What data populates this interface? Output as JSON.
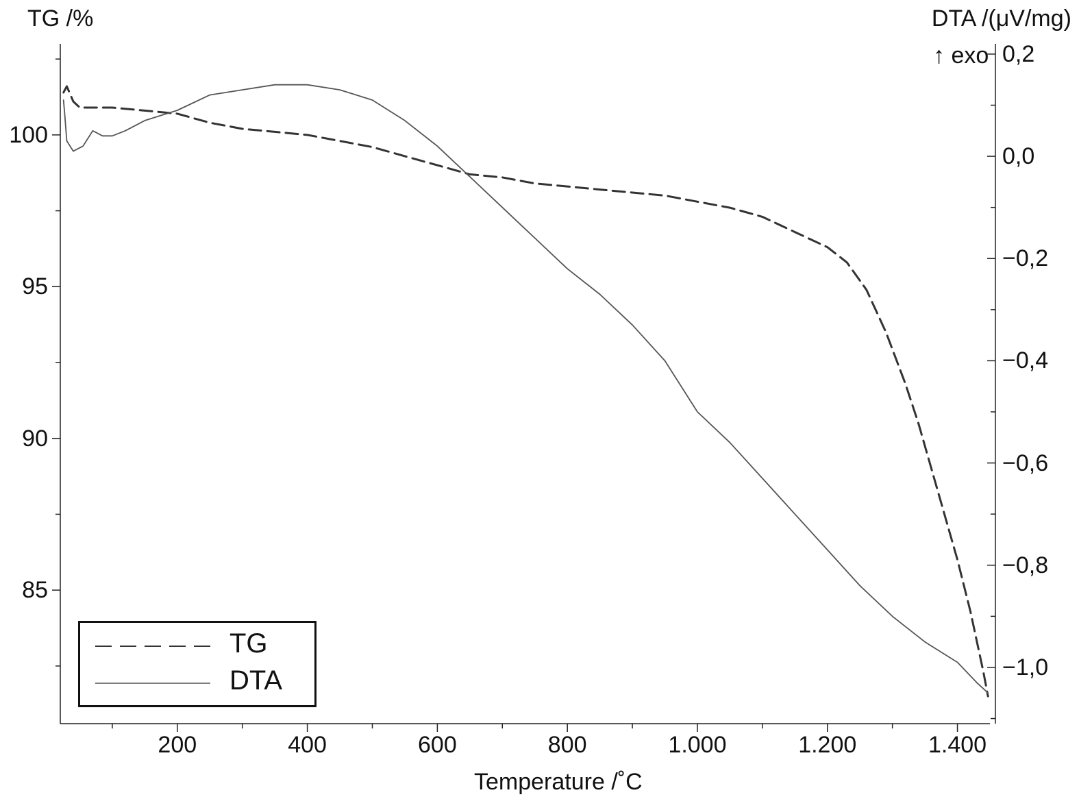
{
  "chart_data": {
    "type": "line",
    "xlabel": "Temperature /˚C",
    "y_left_label": "TG /%",
    "y_right_label": "DTA /(μV/mg)",
    "y_right_sublabel": "↑ exo",
    "xlim": [
      20,
      1450
    ],
    "ylim_left": [
      80.6,
      103
    ],
    "ylim_right": [
      -1.11,
      0.22
    ],
    "x_ticks": [
      200,
      400,
      600,
      800,
      1000,
      1200,
      1400
    ],
    "x_tick_labels": [
      "200",
      "400",
      "600",
      "800",
      "1.000",
      "1.200",
      "1.400"
    ],
    "y_left_ticks": [
      100,
      95,
      90,
      85
    ],
    "y_left_tick_labels": [
      "100",
      "95",
      "90",
      "85"
    ],
    "y_right_ticks": [
      0.2,
      0.0,
      -0.2,
      -0.4,
      -0.6,
      -0.8,
      -1.0
    ],
    "y_right_tick_labels": [
      "0,2",
      "0,0",
      "−0,2",
      "−0,4",
      "−0,6",
      "−0,8",
      "−1,0"
    ],
    "legend_position": "bottom-left",
    "grid": false,
    "series": [
      {
        "name": "TG",
        "axis": "left",
        "style": "dashed",
        "x": [
          25,
          30,
          40,
          50,
          70,
          100,
          150,
          200,
          250,
          300,
          350,
          400,
          450,
          500,
          550,
          600,
          650,
          700,
          750,
          800,
          850,
          900,
          950,
          1000,
          1050,
          1100,
          1150,
          1200,
          1230,
          1260,
          1290,
          1320,
          1340,
          1360,
          1380,
          1400,
          1420,
          1430,
          1440,
          1447
        ],
        "y": [
          101.4,
          101.6,
          101.1,
          100.9,
          100.9,
          100.9,
          100.8,
          100.7,
          100.4,
          100.2,
          100.1,
          100.0,
          99.8,
          99.6,
          99.3,
          99.0,
          98.7,
          98.6,
          98.4,
          98.3,
          98.2,
          98.1,
          98.0,
          97.8,
          97.6,
          97.3,
          96.8,
          96.3,
          95.8,
          94.9,
          93.5,
          91.8,
          90.5,
          89.0,
          87.5,
          86.0,
          84.3,
          83.3,
          82.3,
          81.5
        ]
      },
      {
        "name": "DTA",
        "axis": "right",
        "style": "solid",
        "x": [
          25,
          27,
          30,
          40,
          55,
          70,
          85,
          100,
          120,
          150,
          200,
          250,
          300,
          350,
          400,
          450,
          500,
          550,
          600,
          650,
          700,
          750,
          800,
          850,
          900,
          950,
          1000,
          1050,
          1100,
          1150,
          1200,
          1250,
          1300,
          1350,
          1400,
          1430,
          1447
        ],
        "y": [
          0.11,
          0.08,
          0.03,
          0.01,
          0.02,
          0.05,
          0.04,
          0.04,
          0.05,
          0.07,
          0.09,
          0.12,
          0.13,
          0.14,
          0.14,
          0.13,
          0.11,
          0.07,
          0.02,
          -0.04,
          -0.1,
          -0.16,
          -0.22,
          -0.27,
          -0.33,
          -0.4,
          -0.5,
          -0.56,
          -0.63,
          -0.7,
          -0.77,
          -0.84,
          -0.9,
          -0.95,
          -0.99,
          -1.03,
          -1.05
        ]
      }
    ]
  }
}
